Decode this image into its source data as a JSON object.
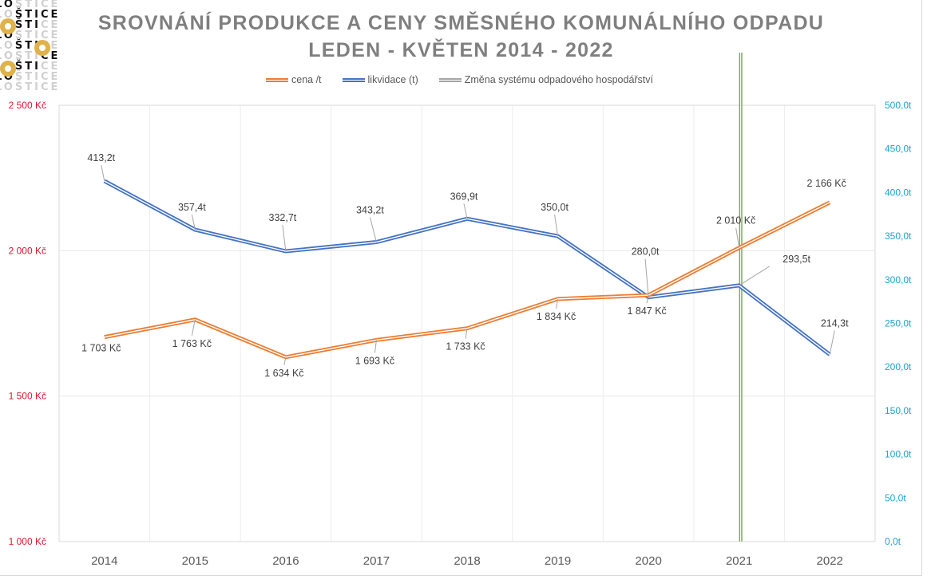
{
  "logo": {
    "rows": [
      "LOŠTICE",
      "LOŠTICE",
      "LOŠTICE",
      "LOŠTICE",
      "LOŠTICE",
      "LOŠTICE",
      "LOŠTICE",
      "LOŠTICE",
      "LOŠTICE"
    ],
    "accent": "#e0b24a"
  },
  "chart_data": {
    "type": "line",
    "title": "SROVNÁNÍ PRODUKCE A CENY SMĚSNÉHO KOMUNÁLNÍHO ODPADU",
    "subtitle": "LEDEN - KVĚTEN 2014 - 2022",
    "categories": [
      "2014",
      "2015",
      "2016",
      "2017",
      "2018",
      "2019",
      "2020",
      "2021",
      "2022"
    ],
    "series": [
      {
        "name": "cena /t",
        "axis": "left",
        "color": "#ed7d31",
        "values": [
          1703,
          1763,
          1634,
          1693,
          1733,
          1834,
          1847,
          2010,
          2166
        ],
        "labels": [
          "1 703 Kč",
          "1 763 Kč",
          "1 634 Kč",
          "1 693 Kč",
          "1 733 Kč",
          "1 834 Kč",
          "1 847 Kč",
          "2 010 Kč",
          "2 166 Kč"
        ]
      },
      {
        "name": "likvidace (t)",
        "axis": "right",
        "color": "#4472c4",
        "values": [
          413.2,
          357.4,
          332.7,
          343.2,
          369.9,
          350.0,
          280.0,
          293.5,
          214.3
        ],
        "labels": [
          "413,2t",
          "357,4t",
          "332,7t",
          "343,2t",
          "369,9t",
          "350,0t",
          "280,0t",
          "293,5t",
          "214,3t"
        ]
      }
    ],
    "marker_line": {
      "name": "Změna systému odpadového hospodářství",
      "category": "2021",
      "color": "#70ad47",
      "legend_color": "#a5a5a5"
    },
    "y_left": {
      "range": [
        1000,
        2500
      ],
      "ticks": [
        1000,
        1500,
        2000,
        2500
      ],
      "tick_labels": [
        "1 000 Kč",
        "1 500 Kč",
        "2 000 Kč",
        "2 500 Kč"
      ],
      "color": "#e0142c"
    },
    "y_right": {
      "range": [
        0,
        500
      ],
      "ticks": [
        0,
        50,
        100,
        150,
        200,
        250,
        300,
        350,
        400,
        450,
        500
      ],
      "tick_labels": [
        "0,0t",
        "50,0t",
        "100,0t",
        "150,0t",
        "200,0t",
        "250,0t",
        "300,0t",
        "350,0t",
        "400,0t",
        "450,0t",
        "500,0t"
      ],
      "color": "#1fa3cf"
    },
    "xlabel": "",
    "grid": true,
    "legend_position": "top-center"
  }
}
